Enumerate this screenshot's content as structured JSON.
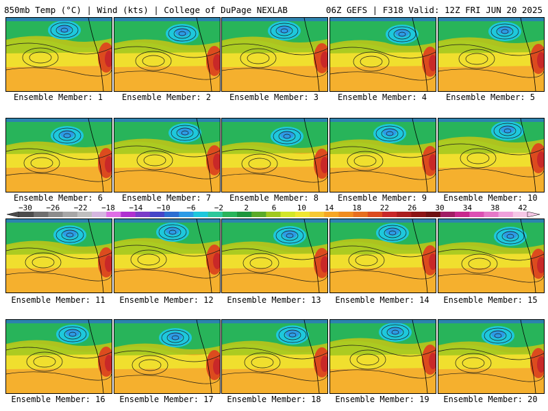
{
  "header": {
    "left": "850mb Temp (°C) | Wind (kts) | College of DuPage NEXLAB",
    "right": "06Z GEFS | F318 Valid: 12Z FRI JUN 20 2025"
  },
  "colorbar": {
    "ticks": [
      "−30",
      "−26",
      "−22",
      "−18",
      "−14",
      "−10",
      "−6",
      "−2",
      "2",
      "6",
      "10",
      "14",
      "18",
      "22",
      "26",
      "30",
      "34",
      "38",
      "42"
    ],
    "colors": [
      "#4c4c4c",
      "#6e6e6e",
      "#8c8c8c",
      "#a6a6a6",
      "#bfbfbf",
      "#d5b6e0",
      "#e06ee6",
      "#b030d0",
      "#7a3cc8",
      "#4646c8",
      "#2d6ed2",
      "#2d9be6",
      "#1ec8dc",
      "#2dc89b",
      "#28b45a",
      "#1e963c",
      "#5aaa28",
      "#a0c81e",
      "#d2e628",
      "#f0e630",
      "#f5c832",
      "#f5a623",
      "#f08c1e",
      "#e66e1e",
      "#dc4b1e",
      "#c82828",
      "#aa1e1e",
      "#8c1414",
      "#6e1010",
      "#a01e64",
      "#c8288c",
      "#dc50b4",
      "#e678c8",
      "#f0a0dc",
      "#f5c8e6"
    ]
  },
  "members": [
    {
      "label": "Ensemble Member: 1"
    },
    {
      "label": "Ensemble Member: 2"
    },
    {
      "label": "Ensemble Member: 3"
    },
    {
      "label": "Ensemble Member: 4"
    },
    {
      "label": "Ensemble Member: 5"
    },
    {
      "label": "Ensemble Member: 6"
    },
    {
      "label": "Ensemble Member: 7"
    },
    {
      "label": "Ensemble Member: 8"
    },
    {
      "label": "Ensemble Member: 9"
    },
    {
      "label": "Ensemble Member: 10"
    },
    {
      "label": "Ensemble Member: 11"
    },
    {
      "label": "Ensemble Member: 12"
    },
    {
      "label": "Ensemble Member: 13"
    },
    {
      "label": "Ensemble Member: 14"
    },
    {
      "label": "Ensemble Member: 15"
    },
    {
      "label": "Ensemble Member: 16"
    },
    {
      "label": "Ensemble Member: 17"
    },
    {
      "label": "Ensemble Member: 18"
    },
    {
      "label": "Ensemble Member: 19"
    },
    {
      "label": "Ensemble Member: 20"
    }
  ]
}
